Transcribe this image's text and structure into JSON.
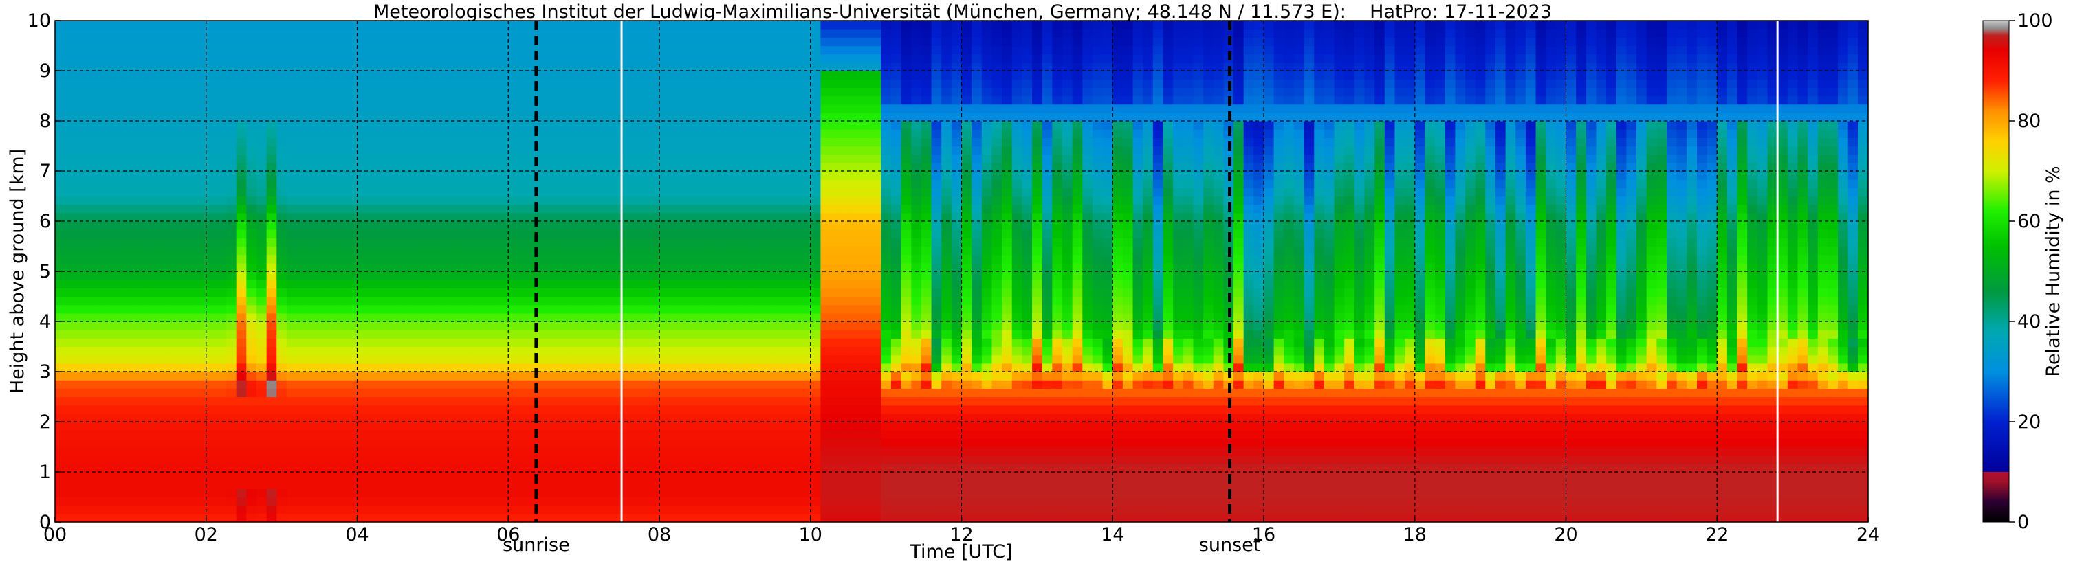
{
  "chart_data": {
    "type": "heatmap",
    "title": "Meteorologisches Institut der Ludwig-Maximilians-Universität (München, Germany; 48.148 N / 11.573 E):    HatPro: 17-11-2023",
    "xlabel": "Time [UTC]",
    "ylabel": "Height above ground [km]",
    "xlim": [
      0,
      24
    ],
    "ylim": [
      0,
      10
    ],
    "x_ticks": [
      "00",
      "02",
      "04",
      "06",
      "08",
      "10",
      "12",
      "14",
      "16",
      "18",
      "20",
      "22",
      "24"
    ],
    "y_ticks": [
      "0",
      "1",
      "2",
      "3",
      "4",
      "5",
      "6",
      "7",
      "8",
      "9",
      "10"
    ],
    "grid": true,
    "colorbar": {
      "label": "Relative Humidity in %",
      "range": [
        0,
        100
      ],
      "ticks": [
        "0",
        "20",
        "40",
        "60",
        "80",
        "100"
      ]
    },
    "annotations": [
      {
        "text": "sunrise",
        "x": 6.37
      },
      {
        "text": "sunset",
        "x": 15.55
      }
    ],
    "white_gaps_x": [
      7.5,
      22.8
    ],
    "description_profile_height_km": [
      0,
      0.5,
      1,
      2,
      2.8,
      3.2,
      4,
      5,
      6,
      6.5,
      8,
      10
    ],
    "profile_morning_rh": [
      88,
      92,
      92,
      90,
      85,
      72,
      65,
      50,
      45,
      38,
      35,
      33
    ],
    "profile_afternoon_rh": [
      96,
      97,
      97,
      92,
      82,
      65,
      55,
      50,
      45,
      40,
      30,
      20
    ]
  }
}
